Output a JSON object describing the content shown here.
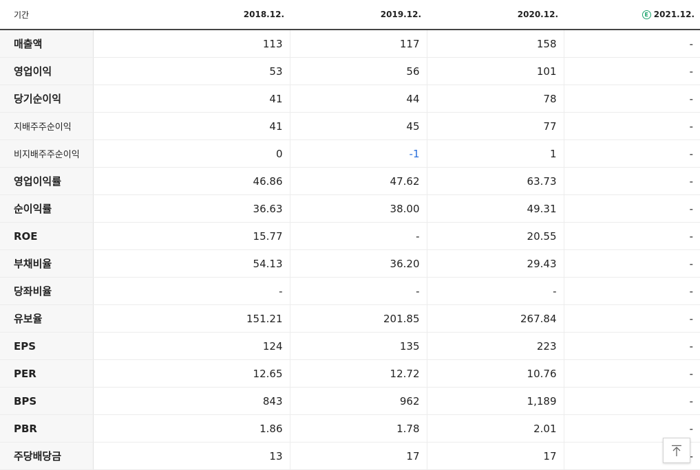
{
  "header": {
    "period_label": "기간",
    "periods": [
      "2018.12.",
      "2019.12.",
      "2020.12.",
      "2021.12."
    ],
    "estimate_badge": "E"
  },
  "rows": [
    {
      "label": "매출액",
      "values": [
        "113",
        "117",
        "158",
        "-"
      ]
    },
    {
      "label": "영업이익",
      "values": [
        "53",
        "56",
        "101",
        "-"
      ]
    },
    {
      "label": "당기순이익",
      "values": [
        "41",
        "44",
        "78",
        "-"
      ]
    },
    {
      "label": "지배주주순이익",
      "values": [
        "41",
        "45",
        "77",
        "-"
      ]
    },
    {
      "label": "비지배주주순이익",
      "values": [
        "0",
        "-1",
        "1",
        "-"
      ]
    },
    {
      "label": "영업이익률",
      "values": [
        "46.86",
        "47.62",
        "63.73",
        "-"
      ]
    },
    {
      "label": "순이익률",
      "values": [
        "36.63",
        "38.00",
        "49.31",
        "-"
      ]
    },
    {
      "label": "ROE",
      "values": [
        "15.77",
        "-",
        "20.55",
        "-"
      ]
    },
    {
      "label": "부채비율",
      "values": [
        "54.13",
        "36.20",
        "29.43",
        "-"
      ]
    },
    {
      "label": "당좌비율",
      "values": [
        "-",
        "-",
        "-",
        "-"
      ]
    },
    {
      "label": "유보율",
      "values": [
        "151.21",
        "201.85",
        "267.84",
        "-"
      ]
    },
    {
      "label": "EPS",
      "values": [
        "124",
        "135",
        "223",
        "-"
      ]
    },
    {
      "label": "PER",
      "values": [
        "12.65",
        "12.72",
        "10.76",
        "-"
      ]
    },
    {
      "label": "BPS",
      "values": [
        "843",
        "962",
        "1,189",
        "-"
      ]
    },
    {
      "label": "PBR",
      "values": [
        "1.86",
        "1.78",
        "2.01",
        "-"
      ]
    },
    {
      "label": "주당배당금",
      "values": [
        "13",
        "17",
        "17",
        "-"
      ]
    }
  ],
  "colors": {
    "negative": "#2a6fdb",
    "estimate": "#1aa36b"
  },
  "icons": {
    "scroll_top": "arrow-up-to-top-icon"
  }
}
